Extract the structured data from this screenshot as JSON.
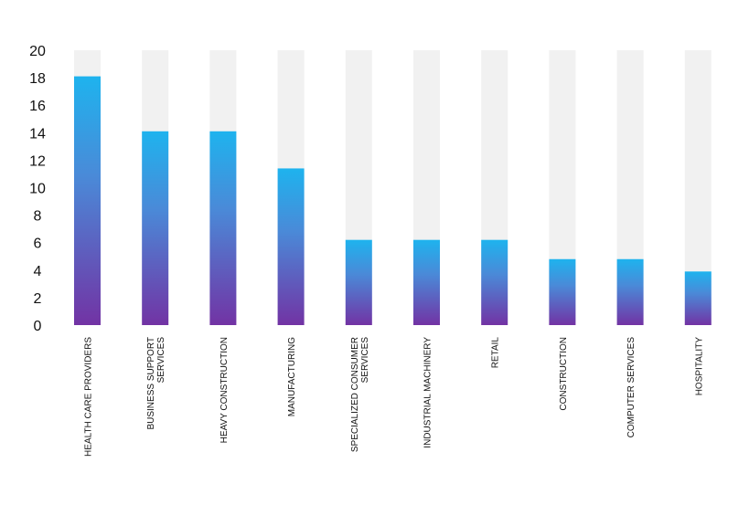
{
  "chart_data": {
    "type": "bar",
    "categories": [
      [
        "HEALTH CARE PROVIDERS"
      ],
      [
        "BUSINESS SUPPORT",
        "SERVICES"
      ],
      [
        "HEAVY CONSTRUCTION"
      ],
      [
        "MANUFACTURING"
      ],
      [
        "SPECIALIZED CONSUMER",
        "SERVICES"
      ],
      [
        "INDUSTRIAL MACHINERY"
      ],
      [
        "RETAIL"
      ],
      [
        "CONSTRUCTION"
      ],
      [
        "COMPUTER SERVICES"
      ],
      [
        "HOSPITALITY"
      ]
    ],
    "values": [
      18.1,
      14.1,
      14.1,
      11.4,
      6.2,
      6.2,
      6.2,
      4.8,
      4.8,
      3.9
    ],
    "ylim": [
      0,
      20
    ],
    "yticks": [
      0,
      2,
      4,
      6,
      8,
      10,
      12,
      14,
      16,
      18,
      20
    ],
    "title": "",
    "xlabel": "",
    "ylabel": "",
    "grid": false,
    "colors": {
      "background_track": "#f1f1f1",
      "bar_top": "#1eb3ee",
      "bar_mid": "#4a8ad8",
      "bar_bottom": "#7233a4",
      "text": "#111111"
    }
  }
}
